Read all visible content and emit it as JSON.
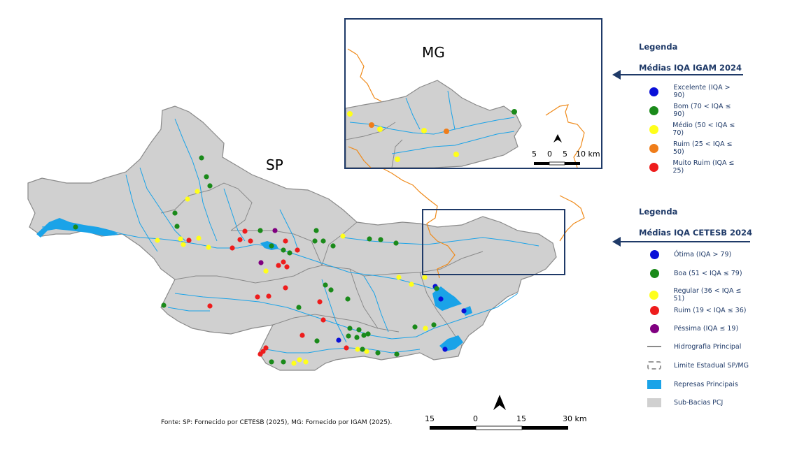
{
  "map": {
    "label_sp": "SP",
    "label_mg": "MG",
    "source_note": "Fonte: SP: Fornecido por CETESB (2025), MG: Fornecido por IGAM (2025).",
    "main_scale": {
      "labels": [
        "15",
        "0",
        "15",
        "30 km"
      ]
    },
    "inset_scale": {
      "labels": [
        "5",
        "0",
        "5",
        "10 km"
      ]
    }
  },
  "legend_igam": {
    "title": "Legenda",
    "subtitle": "Médias IQA IGAM 2024",
    "items": [
      {
        "label": "Excelente (IQA > 90)",
        "color": "#0a10d8"
      },
      {
        "label": "Bom (70 < IQA ≤ 90)",
        "color": "#1a8a1a"
      },
      {
        "label": "Médio (50 < IQA ≤ 70)",
        "color": "#ffff1a"
      },
      {
        "label": "Ruim (25 < IQA ≤ 50)",
        "color": "#ef7d1a"
      },
      {
        "label": "Muito Ruim (IQA ≤ 25)",
        "color": "#ee1c1c"
      }
    ]
  },
  "legend_cetesb": {
    "title": "Legenda",
    "subtitle": "Médias IQA CETESB 2024",
    "items": [
      {
        "label": "Ótima (IQA > 79)",
        "color": "#0a10d8"
      },
      {
        "label": "Boa (51 < IQA ≤ 79)",
        "color": "#1a8a1a"
      },
      {
        "label": "Regular (36 < IQA ≤ 51)",
        "color": "#ffff1a"
      },
      {
        "label": "Ruim (19 < IQA ≤ 36)",
        "color": "#ee1c1c"
      },
      {
        "label": "Péssima (IQA ≤ 19)",
        "color": "#800080"
      }
    ],
    "layers": [
      {
        "label": "Hidrografia Principal",
        "icon": "line"
      },
      {
        "label": "Limite Estadual SP/MG",
        "icon": "dashed-box"
      },
      {
        "label": "Represas Principais",
        "icon": "blue-rect"
      },
      {
        "label": "Sub-Bacias PCJ",
        "icon": "grey-rect"
      }
    ]
  },
  "colors": {
    "basin": "#d0d0d0",
    "basin_border": "#8a8a8a",
    "river": "#1aa3e8",
    "state_border": "#ef8a1a",
    "frame": "#1f3a68"
  }
}
